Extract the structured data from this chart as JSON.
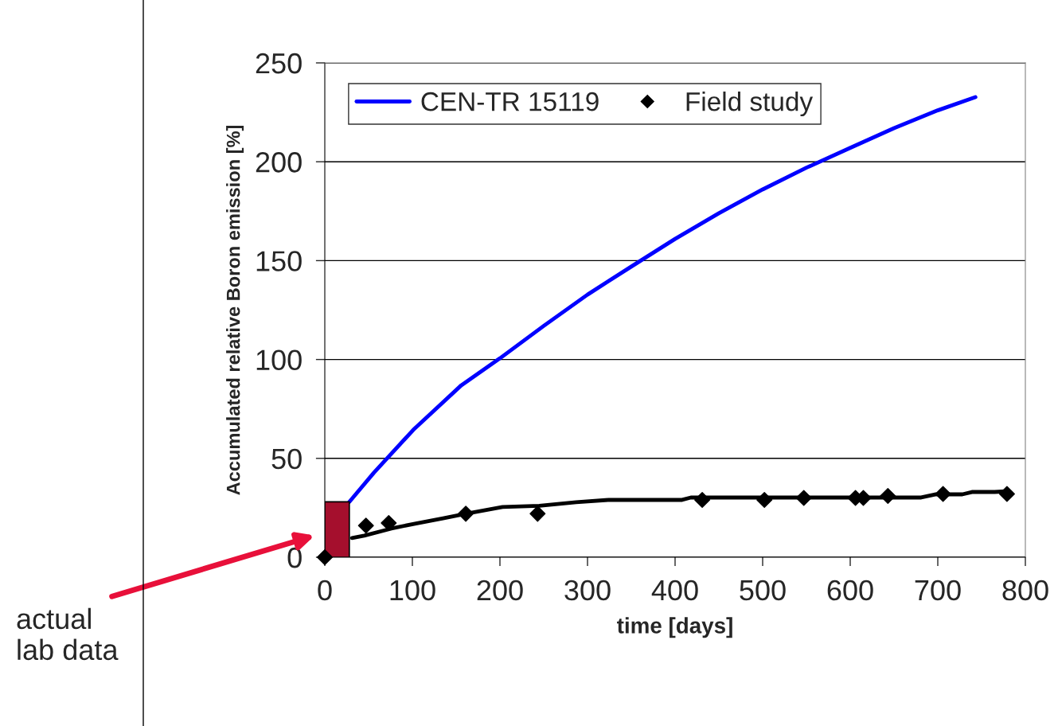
{
  "chart_data": {
    "type": "line",
    "xlabel": "time [days]",
    "ylabel": "Accumulated relative Boron emission [%]",
    "xlim": [
      0,
      800
    ],
    "xticks": [
      0,
      100,
      200,
      300,
      400,
      500,
      600,
      700,
      800
    ],
    "ylim": [
      0,
      250
    ],
    "yticks": [
      0,
      50,
      100,
      150,
      200,
      250
    ],
    "grid": "y",
    "legend": "top left",
    "series": [
      {
        "type": "area",
        "color": "#a50f2d",
        "x": [
          0,
          28
        ],
        "values": [
          28,
          28
        ]
      },
      {
        "name": "CEN-TR 15119",
        "color": "#0000ff",
        "marker": "none",
        "x": [
          28,
          56,
          101,
          156,
          200,
          250,
          300,
          350,
          400,
          450,
          500,
          550,
          600,
          650,
          700,
          743
        ],
        "values": [
          28,
          42.7,
          64.4,
          87,
          100.6,
          117,
          132.8,
          147,
          161,
          174,
          186,
          197,
          207,
          217,
          226,
          232.7
        ]
      },
      {
        "color": "#000000",
        "marker": "none",
        "x": [
          31,
          45,
          76,
          103,
          135,
          161,
          203,
          245,
          287,
          324,
          408,
          418,
          681,
          697,
          728,
          739,
          765,
          781
        ],
        "values": [
          9.7,
          10.9,
          14.5,
          17,
          19.7,
          22,
          25.4,
          26,
          27.8,
          29,
          29,
          30.2,
          30.2,
          31.8,
          31.8,
          33,
          33,
          33.4
        ]
      },
      {
        "type": "scatter",
        "name": "Field study",
        "color": "#000000",
        "marker": "diamond",
        "x": [
          0,
          47,
          73,
          161,
          243,
          431,
          502,
          547,
          606,
          615,
          643,
          706,
          779
        ],
        "values": [
          0,
          16,
          17.3,
          22,
          22,
          29,
          29,
          30,
          30,
          30,
          31,
          32,
          32
        ]
      }
    ],
    "annotations": [
      "actual lab data"
    ]
  }
}
